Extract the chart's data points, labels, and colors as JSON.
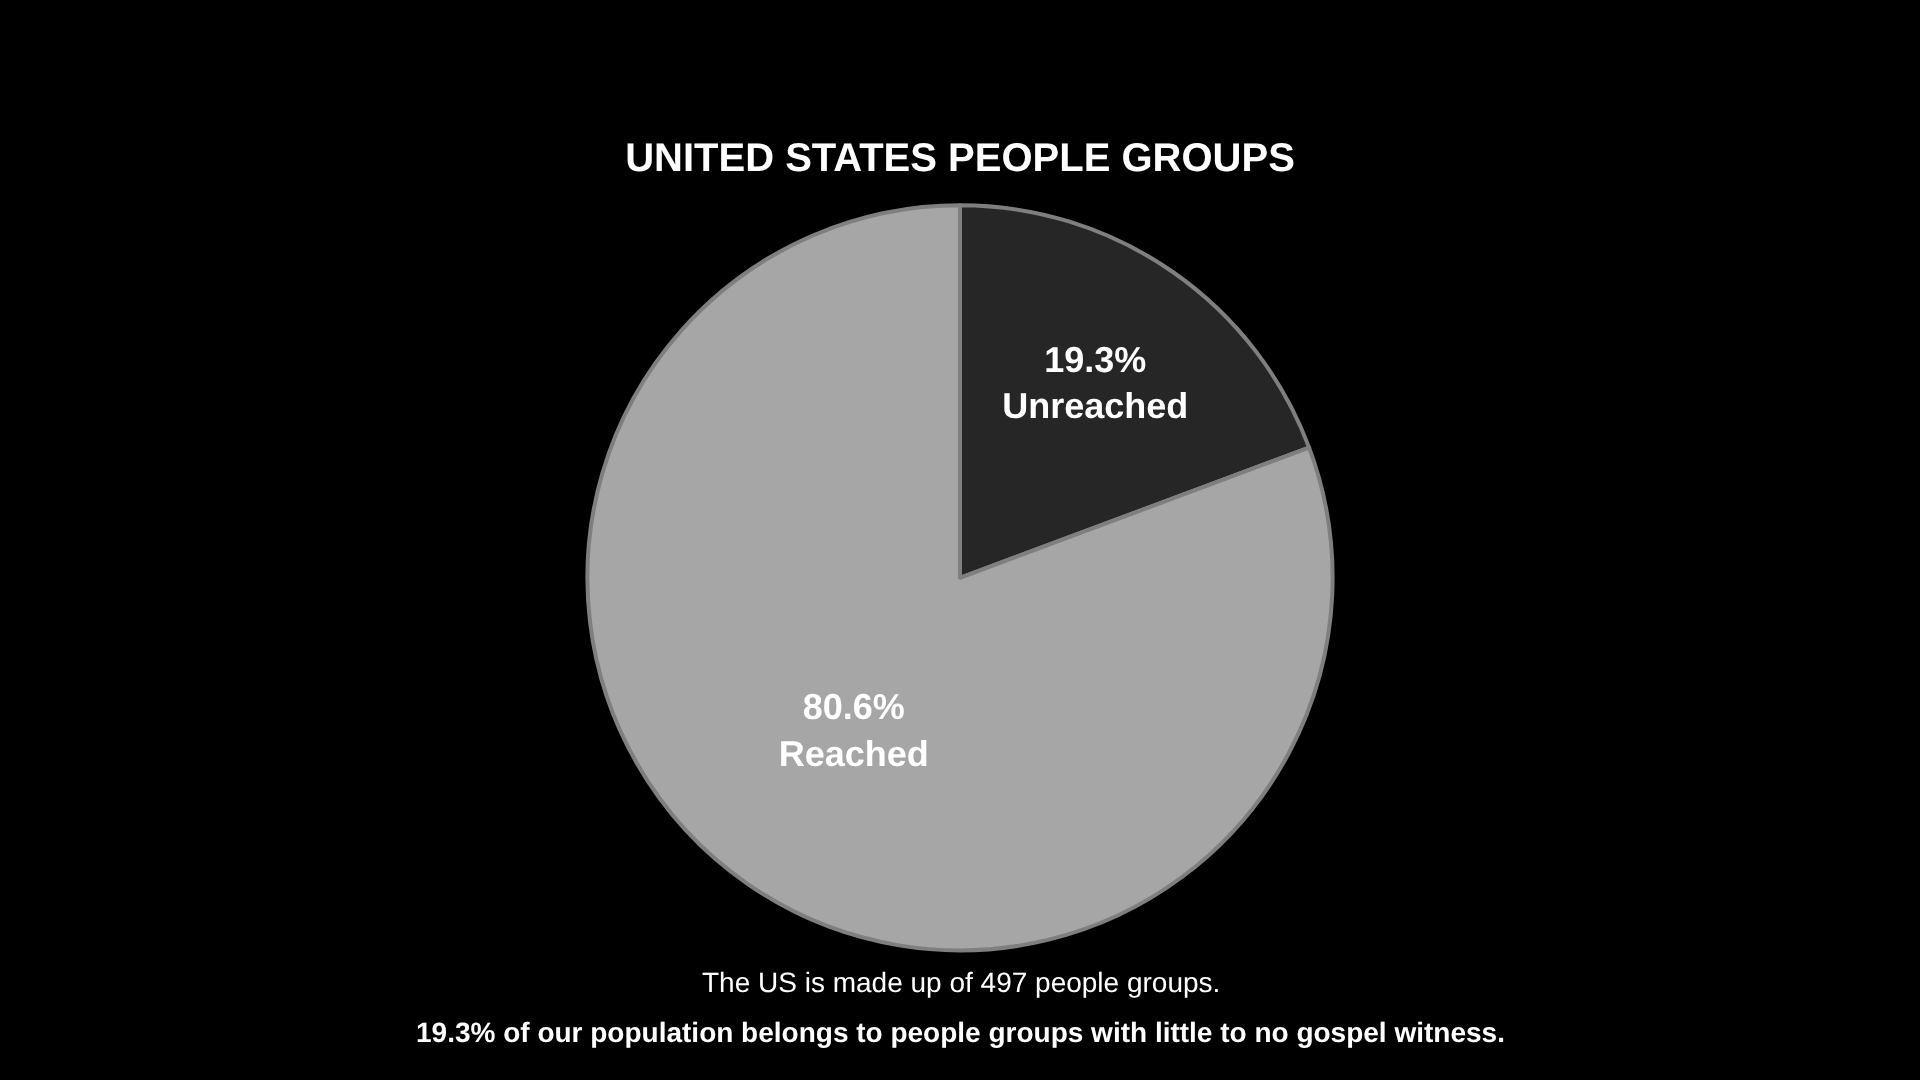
{
  "chart_data": {
    "type": "pie",
    "title": "UNITED STATES PEOPLE GROUPS",
    "categories": [
      "Unreached",
      "Reached"
    ],
    "values": [
      19.3,
      80.6
    ],
    "value_labels": [
      "19.3%",
      "80.6%"
    ],
    "colors": [
      "#262626",
      "#a6a6a6"
    ],
    "legend": false,
    "annotations": [
      "The US is made up of 497 people groups.",
      "19.3% of our population belongs to people groups with little to no gospel witness."
    ]
  }
}
